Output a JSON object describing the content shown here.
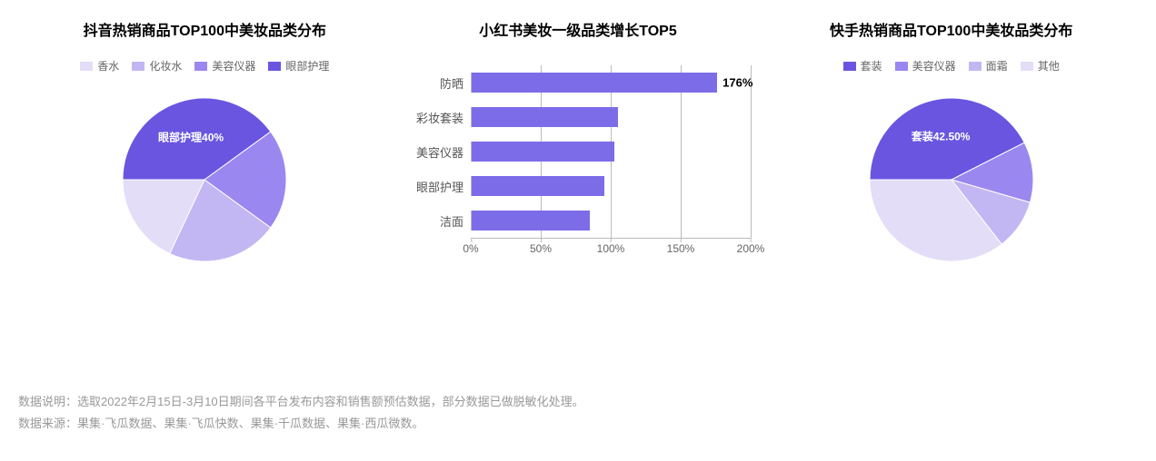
{
  "colors": {
    "bar_fill": "#7c6ce8",
    "axis": "#bbbbbb",
    "text": "#555555",
    "title": "#000000",
    "footer": "#999999",
    "background": "#ffffff"
  },
  "panel1": {
    "title": "抖音热销商品TOP100中美妆品类分布",
    "type": "pie",
    "legend": [
      {
        "label": "香水",
        "color": "#e3ddf7"
      },
      {
        "label": "化妆水",
        "color": "#c3b7f3"
      },
      {
        "label": "美容仪器",
        "color": "#9b87f0"
      },
      {
        "label": "眼部护理",
        "color": "#6a55e0"
      }
    ],
    "slices": [
      {
        "label": "眼部护理",
        "value": 40,
        "color": "#6a55e0"
      },
      {
        "label": "美容仪器",
        "value": 20,
        "color": "#9b87f0"
      },
      {
        "label": "化妆水",
        "value": 22,
        "color": "#c3b7f3"
      },
      {
        "label": "香水",
        "value": 18,
        "color": "#e3ddf7"
      }
    ],
    "highlight": {
      "text": "眼部护理40%",
      "slice_index": 0
    }
  },
  "panel2": {
    "title": "小红书美妆一级品类增长TOP5",
    "type": "bar",
    "bar_color": "#7c6ce8",
    "xmax": 200,
    "xticks": [
      0,
      50,
      100,
      150,
      200
    ],
    "tick_suffix": "%",
    "bars": [
      {
        "label": "防晒",
        "value": 176,
        "show_value": true,
        "value_text": "176%"
      },
      {
        "label": "彩妆套装",
        "value": 105,
        "show_value": false
      },
      {
        "label": "美容仪器",
        "value": 102,
        "show_value": false
      },
      {
        "label": "眼部护理",
        "value": 95,
        "show_value": false
      },
      {
        "label": "洁面",
        "value": 85,
        "show_value": false
      }
    ]
  },
  "panel3": {
    "title": "快手热销商品TOP100中美妆品类分布",
    "type": "pie",
    "legend": [
      {
        "label": "套装",
        "color": "#6a55e0"
      },
      {
        "label": "美容仪器",
        "color": "#9b87f0"
      },
      {
        "label": "面霜",
        "color": "#c3b7f3"
      },
      {
        "label": "其他",
        "color": "#e3ddf7"
      }
    ],
    "slices": [
      {
        "label": "套装",
        "value": 42.5,
        "color": "#6a55e0"
      },
      {
        "label": "美容仪器",
        "value": 12,
        "color": "#9b87f0"
      },
      {
        "label": "面霜",
        "value": 10,
        "color": "#c3b7f3"
      },
      {
        "label": "其他",
        "value": 35.5,
        "color": "#e3ddf7"
      }
    ],
    "highlight": {
      "text": "套装42.50%",
      "slice_index": 0
    }
  },
  "footer": {
    "line1": "数据说明：选取2022年2月15日-3月10日期间各平台发布内容和销售额预估数据，部分数据已做脱敏化处理。",
    "line2": "数据来源：果集·飞瓜数据、果集·飞瓜快数、果集·千瓜数据、果集·西瓜微数。"
  }
}
